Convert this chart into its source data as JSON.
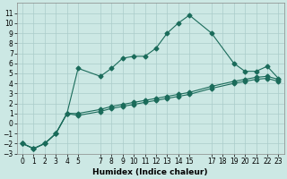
{
  "xlabel": "Humidex (Indice chaleur)",
  "background_color": "#cce8e4",
  "grid_color": "#aaccca",
  "line_color": "#1a6b5a",
  "xlim": [
    -0.5,
    23.5
  ],
  "ylim": [
    -3,
    12
  ],
  "yticks": [
    -3,
    -2,
    -1,
    0,
    1,
    2,
    3,
    4,
    5,
    6,
    7,
    8,
    9,
    10,
    11
  ],
  "xticks": [
    0,
    1,
    2,
    3,
    4,
    5,
    7,
    8,
    9,
    10,
    11,
    12,
    13,
    14,
    15,
    17,
    18,
    19,
    20,
    21,
    22,
    23
  ],
  "line1_x": [
    0,
    1,
    2,
    3,
    4,
    5,
    7,
    8,
    9,
    10,
    11,
    12,
    13,
    14,
    15,
    17,
    19,
    20,
    21,
    22,
    23
  ],
  "line1_y": [
    -2,
    -2.5,
    -2,
    -1,
    1,
    5.5,
    4.7,
    5.5,
    6.5,
    6.7,
    6.7,
    7.5,
    9.0,
    10.0,
    10.8,
    9.0,
    6.0,
    5.2,
    5.2,
    5.7,
    4.5
  ],
  "line2_x": [
    0,
    1,
    2,
    3,
    4,
    5,
    7,
    8,
    9,
    10,
    11,
    12,
    13,
    14,
    15,
    17,
    19,
    20,
    21,
    22,
    23
  ],
  "line2_y": [
    -2,
    -2.5,
    -2,
    -1,
    1,
    1.0,
    1.4,
    1.7,
    1.9,
    2.1,
    2.3,
    2.5,
    2.7,
    2.9,
    3.1,
    3.7,
    4.2,
    4.4,
    4.6,
    4.7,
    4.4
  ],
  "line3_x": [
    0,
    1,
    2,
    3,
    4,
    5,
    7,
    8,
    9,
    10,
    11,
    12,
    13,
    14,
    15,
    17,
    19,
    20,
    21,
    22,
    23
  ],
  "line3_y": [
    -2,
    -2.5,
    -2,
    -1,
    1,
    0.8,
    1.2,
    1.5,
    1.7,
    1.9,
    2.1,
    2.3,
    2.5,
    2.7,
    2.9,
    3.5,
    4.0,
    4.2,
    4.4,
    4.5,
    4.2
  ],
  "marker_size": 2.5,
  "line_width": 0.8,
  "tick_fontsize": 5.5,
  "xlabel_fontsize": 6.5
}
